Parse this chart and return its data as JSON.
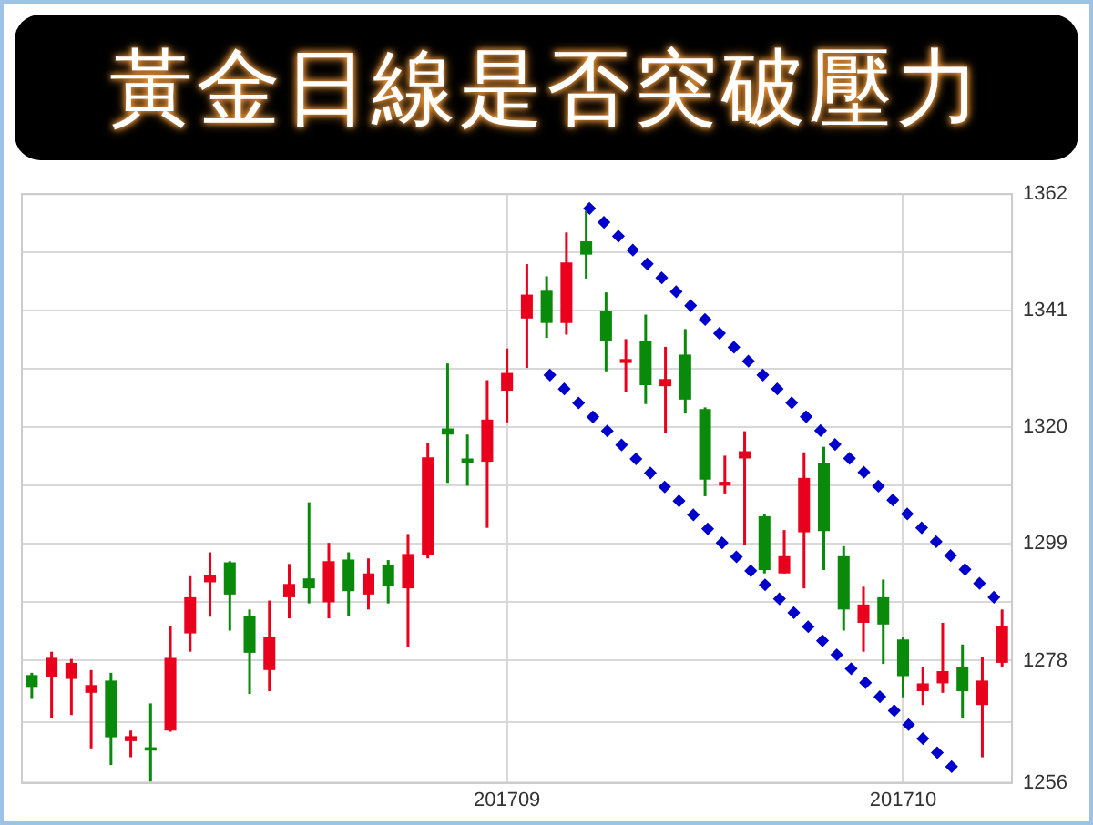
{
  "chart_data": {
    "type": "candlestick",
    "title": "黃金日線是否突破壓力",
    "categories": [
      null,
      null,
      null,
      null,
      null,
      null,
      null,
      null,
      null,
      null,
      null,
      null,
      null,
      null,
      null,
      null,
      null,
      null,
      null,
      null,
      null,
      null,
      null,
      null,
      "201709",
      null,
      null,
      null,
      null,
      null,
      null,
      null,
      null,
      null,
      null,
      null,
      null,
      null,
      null,
      null,
      null,
      null,
      null,
      null,
      "201710",
      null,
      null,
      null,
      null,
      null
    ],
    "ohlc": [
      [
        1275.4,
        1275.8,
        1271.1,
        1273.1
      ],
      [
        1275.0,
        1279.6,
        1267.6,
        1278.5
      ],
      [
        1274.7,
        1278.3,
        1268.2,
        1277.6
      ],
      [
        1272.2,
        1276.3,
        1262.2,
        1273.6
      ],
      [
        1274.4,
        1275.8,
        1259.2,
        1264.2
      ],
      [
        1263.5,
        1265.4,
        1260.6,
        1264.4
      ],
      [
        1262.4,
        1270.3,
        1256.2,
        1261.8
      ],
      [
        1265.4,
        1284.2,
        1265.2,
        1278.5
      ],
      [
        1282.9,
        1293.2,
        1279.6,
        1289.4
      ],
      [
        1292.1,
        1297.5,
        1285.9,
        1293.4
      ],
      [
        1295.7,
        1295.9,
        1283.4,
        1289.9
      ],
      [
        1286.1,
        1287.2,
        1272.0,
        1279.4
      ],
      [
        1276.3,
        1288.8,
        1272.5,
        1282.3
      ],
      [
        1289.4,
        1295.4,
        1285.6,
        1291.8
      ],
      [
        1292.8,
        1306.5,
        1288.3,
        1291.0
      ],
      [
        1288.5,
        1299.2,
        1285.6,
        1295.9
      ],
      [
        1296.2,
        1297.5,
        1286.1,
        1290.5
      ],
      [
        1289.9,
        1296.4,
        1287.2,
        1293.7
      ],
      [
        1295.3,
        1296.1,
        1288.3,
        1291.5
      ],
      [
        1291.0,
        1300.8,
        1280.5,
        1297.2
      ],
      [
        1297.0,
        1317.1,
        1296.4,
        1314.6
      ],
      [
        1319.8,
        1331.5,
        1310.0,
        1318.7
      ],
      [
        1314.4,
        1318.7,
        1309.5,
        1313.5
      ],
      [
        1313.8,
        1328.5,
        1301.9,
        1321.4
      ],
      [
        1326.6,
        1334.2,
        1320.9,
        1329.8
      ],
      [
        1339.6,
        1349.4,
        1330.7,
        1343.9
      ],
      [
        1344.6,
        1347.2,
        1336.1,
        1338.8
      ],
      [
        1338.8,
        1355.1,
        1336.7,
        1349.7
      ],
      [
        1353.5,
        1359.0,
        1346.8,
        1351.1
      ],
      [
        1341.0,
        1344.3,
        1330.1,
        1335.6
      ],
      [
        1331.6,
        1335.9,
        1326.3,
        1332.3
      ],
      [
        1335.6,
        1340.3,
        1324.2,
        1327.6
      ],
      [
        1327.4,
        1334.5,
        1318.9,
        1328.7
      ],
      [
        1333.1,
        1337.7,
        1322.5,
        1325.0
      ],
      [
        1323.3,
        1323.6,
        1307.6,
        1310.6
      ],
      [
        1309.5,
        1314.9,
        1308.1,
        1310.2
      ],
      [
        1314.4,
        1319.3,
        1298.9,
        1315.7
      ],
      [
        1304.0,
        1304.4,
        1293.7,
        1294.3
      ],
      [
        1293.7,
        1301.5,
        1293.7,
        1296.8
      ],
      [
        1301.1,
        1315.5,
        1291.0,
        1310.9
      ],
      [
        1313.5,
        1316.5,
        1294.3,
        1301.3
      ],
      [
        1296.8,
        1298.6,
        1283.4,
        1287.2
      ],
      [
        1284.8,
        1291.3,
        1279.6,
        1288.1
      ],
      [
        1289.4,
        1292.6,
        1277.4,
        1284.5
      ],
      [
        1281.8,
        1282.3,
        1271.4,
        1275.2
      ],
      [
        1272.5,
        1276.9,
        1270.0,
        1273.9
      ],
      [
        1273.9,
        1284.8,
        1272.2,
        1276.1
      ],
      [
        1276.9,
        1280.9,
        1267.6,
        1272.5
      ],
      [
        1270.0,
        1278.7,
        1260.6,
        1274.4
      ],
      [
        1277.6,
        1287.2,
        1276.9,
        1284.2
      ]
    ],
    "colors": [
      "#0a8a0a",
      "#e8001c",
      "#e8001c",
      "#e8001c",
      "#0a8a0a",
      "#e8001c",
      "#0a8a0a",
      "#e8001c",
      "#e8001c",
      "#e8001c",
      "#0a8a0a",
      "#0a8a0a",
      "#e8001c",
      "#e8001c",
      "#0a8a0a",
      "#e8001c",
      "#0a8a0a",
      "#e8001c",
      "#0a8a0a",
      "#e8001c",
      "#e8001c",
      "#0a8a0a",
      "#0a8a0a",
      "#e8001c",
      "#e8001c",
      "#e8001c",
      "#0a8a0a",
      "#e8001c",
      "#0a8a0a",
      "#0a8a0a",
      "#e8001c",
      "#0a8a0a",
      "#e8001c",
      "#0a8a0a",
      "#0a8a0a",
      "#e8001c",
      "#e8001c",
      "#0a8a0a",
      "#e8001c",
      "#e8001c",
      "#0a8a0a",
      "#0a8a0a",
      "#e8001c",
      "#0a8a0a",
      "#0a8a0a",
      "#e8001c",
      "#e8001c",
      "#0a8a0a",
      "#e8001c",
      "#e8001c"
    ],
    "series": [
      {
        "type": "line",
        "color": "#0000cc",
        "line_style": "dotted",
        "values": [
          null,
          null,
          null,
          null,
          null,
          null,
          null,
          null,
          null,
          null,
          null,
          null,
          null,
          null,
          null,
          null,
          null,
          null,
          null,
          null,
          null,
          null,
          null,
          null,
          null,
          null,
          null,
          null,
          1360,
          null,
          null,
          null,
          null,
          null,
          null,
          null,
          null,
          null,
          null,
          null,
          null,
          null,
          null,
          null,
          null,
          null,
          null,
          null,
          null,
          1288
        ]
      },
      {
        "type": "line",
        "color": "#0000cc",
        "line_style": "dotted",
        "values": [
          null,
          null,
          null,
          null,
          null,
          null,
          null,
          null,
          null,
          null,
          null,
          null,
          null,
          null,
          null,
          null,
          null,
          null,
          null,
          null,
          null,
          null,
          null,
          null,
          null,
          null,
          1330,
          null,
          null,
          null,
          null,
          null,
          null,
          null,
          null,
          null,
          null,
          null,
          null,
          null,
          null,
          null,
          null,
          null,
          null,
          null,
          null,
          1257,
          null,
          null
        ]
      }
    ],
    "ylim": [
      1256,
      1362
    ],
    "yticks": [
      1256,
      {
        "value": 1267,
        "label": null
      },
      1278,
      {
        "value": 1288.5,
        "label": null
      },
      1299,
      {
        "value": 1309.5,
        "label": null
      },
      1320,
      {
        "value": 1330.5,
        "label": null
      },
      1341,
      {
        "value": 1351.5,
        "label": null
      },
      1362
    ],
    "grid": true
  }
}
